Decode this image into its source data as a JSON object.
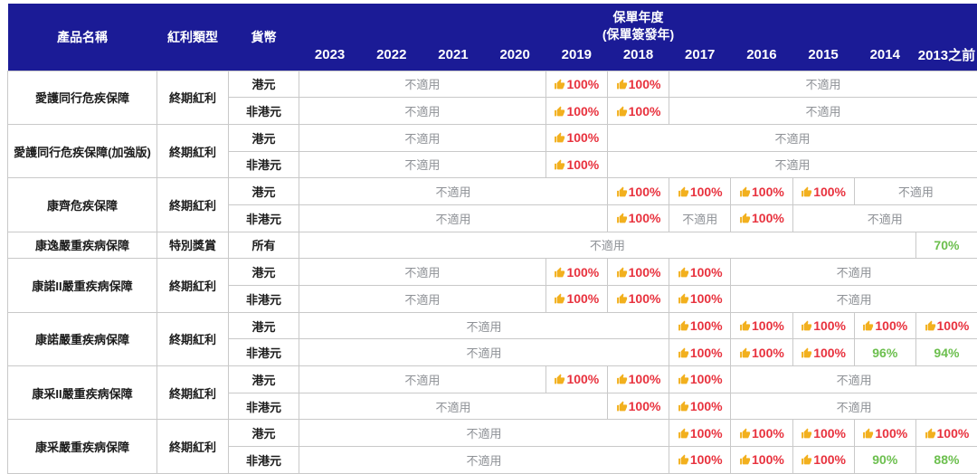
{
  "table": {
    "columns": {
      "product": "產品名稱",
      "bonus_type": "紅利類型",
      "currency": "貨幣"
    },
    "year_header": {
      "title": "保單年度",
      "subtitle": "(保單簽發年)"
    },
    "years": [
      "2023",
      "2022",
      "2021",
      "2020",
      "2019",
      "2018",
      "2017",
      "2016",
      "2015",
      "2014",
      "2013之前"
    ],
    "na_label": "不適用",
    "colors": {
      "header_bg": "#1b1b96",
      "header_text": "#ffffff",
      "ratio_red": "#e8323e",
      "ratio_green": "#6cbf4e",
      "na_text": "#8e9196",
      "border": "#c9c9c9",
      "thumb_yellow": "#f2b01e"
    },
    "products": [
      {
        "name": "愛護同行危疾保障",
        "bonus_type": "終期紅利",
        "rows": [
          {
            "currency": "港元",
            "cells": [
              {
                "t": "na",
                "s": 4
              },
              {
                "t": "up",
                "v": "100%",
                "s": 1
              },
              {
                "t": "up",
                "v": "100%",
                "s": 1
              },
              {
                "t": "na",
                "s": 5
              }
            ]
          },
          {
            "currency": "非港元",
            "cells": [
              {
                "t": "na",
                "s": 4
              },
              {
                "t": "up",
                "v": "100%",
                "s": 1
              },
              {
                "t": "up",
                "v": "100%",
                "s": 1
              },
              {
                "t": "na",
                "s": 5
              }
            ]
          }
        ]
      },
      {
        "name": "愛護同行危疾保障(加強版)",
        "bonus_type": "終期紅利",
        "rows": [
          {
            "currency": "港元",
            "cells": [
              {
                "t": "na",
                "s": 4
              },
              {
                "t": "up",
                "v": "100%",
                "s": 1
              },
              {
                "t": "na",
                "s": 6
              }
            ]
          },
          {
            "currency": "非港元",
            "cells": [
              {
                "t": "na",
                "s": 4
              },
              {
                "t": "up",
                "v": "100%",
                "s": 1
              },
              {
                "t": "na",
                "s": 6
              }
            ]
          }
        ]
      },
      {
        "name": "康齊危疾保障",
        "bonus_type": "終期紅利",
        "rows": [
          {
            "currency": "港元",
            "cells": [
              {
                "t": "na",
                "s": 5
              },
              {
                "t": "up",
                "v": "100%",
                "s": 1
              },
              {
                "t": "up",
                "v": "100%",
                "s": 1
              },
              {
                "t": "up",
                "v": "100%",
                "s": 1
              },
              {
                "t": "up",
                "v": "100%",
                "s": 1
              },
              {
                "t": "na",
                "s": 2
              }
            ]
          },
          {
            "currency": "非港元",
            "cells": [
              {
                "t": "na",
                "s": 5
              },
              {
                "t": "up",
                "v": "100%",
                "s": 1
              },
              {
                "t": "na",
                "s": 1
              },
              {
                "t": "up",
                "v": "100%",
                "s": 1
              },
              {
                "t": "na",
                "s": 3
              }
            ]
          }
        ]
      },
      {
        "name": "康逸嚴重疾病保障",
        "bonus_type": "特別獎賞",
        "rows": [
          {
            "currency": "所有",
            "cells": [
              {
                "t": "na",
                "s": 10
              },
              {
                "t": "green",
                "v": "70%",
                "s": 1
              }
            ]
          }
        ]
      },
      {
        "name": "康諾II嚴重疾病保障",
        "bonus_type": "終期紅利",
        "rows": [
          {
            "currency": "港元",
            "cells": [
              {
                "t": "na",
                "s": 4
              },
              {
                "t": "up",
                "v": "100%",
                "s": 1
              },
              {
                "t": "up",
                "v": "100%",
                "s": 1
              },
              {
                "t": "up",
                "v": "100%",
                "s": 1
              },
              {
                "t": "na",
                "s": 4
              }
            ]
          },
          {
            "currency": "非港元",
            "cells": [
              {
                "t": "na",
                "s": 4
              },
              {
                "t": "up",
                "v": "100%",
                "s": 1
              },
              {
                "t": "up",
                "v": "100%",
                "s": 1
              },
              {
                "t": "up",
                "v": "100%",
                "s": 1
              },
              {
                "t": "na",
                "s": 4
              }
            ]
          }
        ]
      },
      {
        "name": "康諾嚴重疾病保障",
        "bonus_type": "終期紅利",
        "rows": [
          {
            "currency": "港元",
            "cells": [
              {
                "t": "na",
                "s": 6
              },
              {
                "t": "up",
                "v": "100%",
                "s": 1
              },
              {
                "t": "up",
                "v": "100%",
                "s": 1
              },
              {
                "t": "up",
                "v": "100%",
                "s": 1
              },
              {
                "t": "up",
                "v": "100%",
                "s": 1
              },
              {
                "t": "up",
                "v": "100%",
                "s": 1
              }
            ]
          },
          {
            "currency": "非港元",
            "cells": [
              {
                "t": "na",
                "s": 6
              },
              {
                "t": "up",
                "v": "100%",
                "s": 1
              },
              {
                "t": "up",
                "v": "100%",
                "s": 1
              },
              {
                "t": "up",
                "v": "100%",
                "s": 1
              },
              {
                "t": "green",
                "v": "96%",
                "s": 1
              },
              {
                "t": "green",
                "v": "94%",
                "s": 1
              }
            ]
          }
        ]
      },
      {
        "name": "康采II嚴重疾病保障",
        "bonus_type": "終期紅利",
        "rows": [
          {
            "currency": "港元",
            "cells": [
              {
                "t": "na",
                "s": 4
              },
              {
                "t": "up",
                "v": "100%",
                "s": 1
              },
              {
                "t": "up",
                "v": "100%",
                "s": 1
              },
              {
                "t": "up",
                "v": "100%",
                "s": 1
              },
              {
                "t": "na",
                "s": 4
              }
            ]
          },
          {
            "currency": "非港元",
            "cells": [
              {
                "t": "na",
                "s": 5
              },
              {
                "t": "up",
                "v": "100%",
                "s": 1
              },
              {
                "t": "up",
                "v": "100%",
                "s": 1
              },
              {
                "t": "na",
                "s": 4
              }
            ]
          }
        ]
      },
      {
        "name": "康采嚴重疾病保障",
        "bonus_type": "終期紅利",
        "rows": [
          {
            "currency": "港元",
            "cells": [
              {
                "t": "na",
                "s": 6
              },
              {
                "t": "up",
                "v": "100%",
                "s": 1
              },
              {
                "t": "up",
                "v": "100%",
                "s": 1
              },
              {
                "t": "up",
                "v": "100%",
                "s": 1
              },
              {
                "t": "up",
                "v": "100%",
                "s": 1
              },
              {
                "t": "up",
                "v": "100%",
                "s": 1
              }
            ]
          },
          {
            "currency": "非港元",
            "cells": [
              {
                "t": "na",
                "s": 6
              },
              {
                "t": "up",
                "v": "100%",
                "s": 1
              },
              {
                "t": "up",
                "v": "100%",
                "s": 1
              },
              {
                "t": "up",
                "v": "100%",
                "s": 1
              },
              {
                "t": "green",
                "v": "90%",
                "s": 1
              },
              {
                "t": "green",
                "v": "88%",
                "s": 1
              }
            ]
          }
        ]
      }
    ]
  }
}
